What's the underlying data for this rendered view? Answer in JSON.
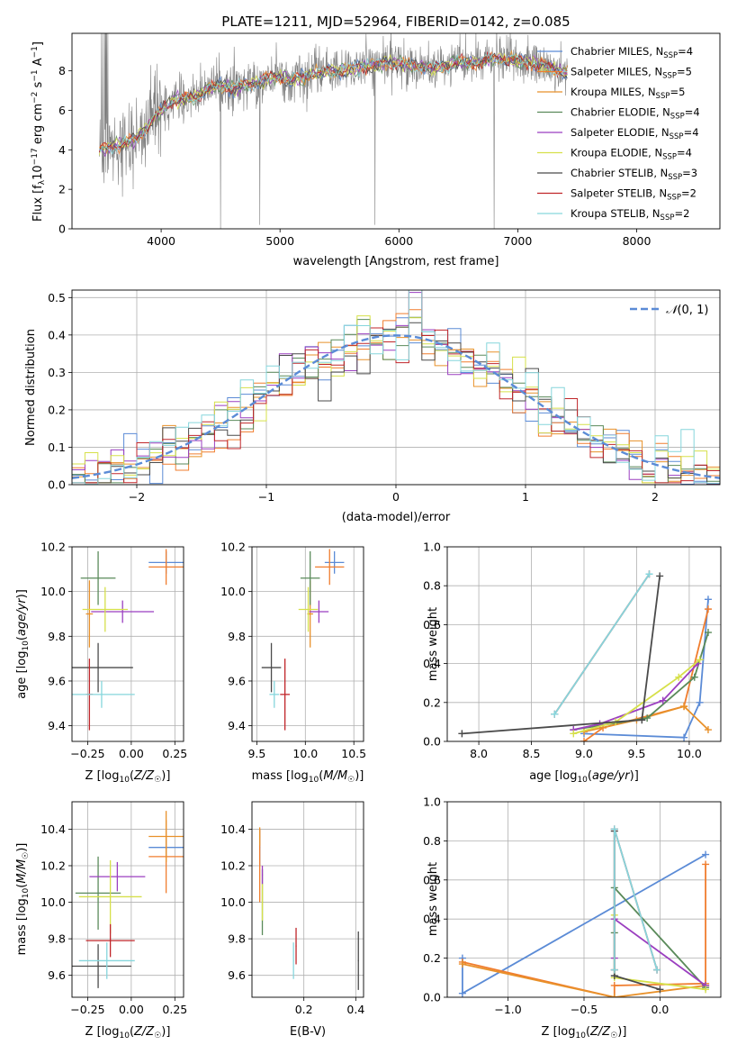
{
  "figure_title": "PLATE=1211, MJD=52964, FIBERID=0142, z=0.085",
  "colors": {
    "Chabrier MILES": "#5b8bd6",
    "Salpeter MILES": "#f07d2e",
    "Kroupa MILES": "#e8912a",
    "Chabrier ELODIE": "#5a8a5a",
    "Salpeter ELODIE": "#9b3fc0",
    "Kroupa ELODIE": "#d6e04a",
    "Chabrier STELIB": "#4a4a4a",
    "Salpeter STELIB": "#c0262a",
    "Kroupa STELIB": "#86d6dc",
    "data": "#808080",
    "grid": "#b0b0b0"
  },
  "chart_data": [
    {
      "type": "line",
      "xlabel": "wavelength [Angstrom, rest frame]",
      "ylabel": "Flux [fλ10⁻¹⁷ erg cm⁻² s⁻¹ A⁻¹]",
      "xlim": [
        3250,
        8700
      ],
      "ylim": [
        0,
        9.9
      ],
      "xticks": [
        4000,
        5000,
        6000,
        7000,
        8000
      ],
      "yticks": [
        0,
        2,
        4,
        6,
        8
      ],
      "grid": false,
      "legend_position": "top-right",
      "data_trace": {
        "x": [
          3480,
          3600,
          3700,
          3800,
          3900,
          4000,
          4100,
          4200,
          4300,
          4400,
          4500,
          4600,
          4700,
          4800,
          4900,
          5000,
          5100,
          5200,
          5300,
          5400,
          5500,
          5600,
          5700,
          5800,
          5900,
          6000,
          6100,
          6200,
          6300,
          6400,
          6500,
          6600,
          6700,
          6800,
          6900,
          7000,
          7100,
          7200,
          7300,
          7400
        ],
        "y": [
          4.0,
          4.2,
          4.3,
          4.6,
          5.3,
          6.0,
          6.5,
          6.6,
          6.7,
          7.1,
          7.3,
          7.1,
          7.3,
          7.4,
          7.6,
          7.7,
          7.5,
          7.7,
          7.9,
          8.0,
          8.0,
          8.1,
          8.2,
          8.3,
          8.4,
          8.4,
          8.3,
          8.2,
          8.1,
          8.3,
          8.4,
          8.4,
          8.5,
          8.6,
          8.6,
          8.5,
          8.4,
          8.3,
          8.1,
          7.9
        ]
      },
      "series": [
        {
          "name": "Chabrier MILES, N<sub>SSP</sub>=4",
          "name_main": "Chabrier MILES, N",
          "name_sub": "SSP",
          "name_end": "=4"
        },
        {
          "name": "Salpeter MILES, N<sub>SSP</sub>=5",
          "name_main": "Salpeter MILES, N",
          "name_sub": "SSP",
          "name_end": "=5"
        },
        {
          "name": "Kroupa MILES, N<sub>SSP</sub>=5",
          "name_main": "Kroupa MILES, N",
          "name_sub": "SSP",
          "name_end": "=5"
        },
        {
          "name": "Chabrier ELODIE, N<sub>SSP</sub>=4",
          "name_main": "Chabrier ELODIE, N",
          "name_sub": "SSP",
          "name_end": "=4"
        },
        {
          "name": "Salpeter ELODIE, N<sub>SSP</sub>=4",
          "name_main": "Salpeter ELODIE, N",
          "name_sub": "SSP",
          "name_end": "=4"
        },
        {
          "name": "Kroupa ELODIE, N<sub>SSP</sub>=4",
          "name_main": "Kroupa ELODIE, N",
          "name_sub": "SSP",
          "name_end": "=4"
        },
        {
          "name": "Chabrier STELIB, N<sub>SSP</sub>=3",
          "name_main": "Chabrier STELIB, N",
          "name_sub": "SSP",
          "name_end": "=3"
        },
        {
          "name": "Salpeter STELIB, N<sub>SSP</sub>=2",
          "name_main": "Salpeter STELIB, N",
          "name_sub": "SSP",
          "name_end": "=2"
        },
        {
          "name": "Kroupa STELIB, N<sub>SSP</sub>=2",
          "name_main": "Kroupa STELIB, N",
          "name_sub": "SSP",
          "name_end": "=2"
        }
      ]
    },
    {
      "type": "histogram",
      "xlabel": "(data-model)/error",
      "ylabel": "Normed distribution",
      "xlim": [
        -2.5,
        2.5
      ],
      "ylim": [
        0,
        0.52
      ],
      "xticks": [
        -2,
        -1,
        0,
        1,
        2
      ],
      "xtick_labels": [
        "−2",
        "−1",
        "0",
        "1",
        "2"
      ],
      "yticks": [
        0.0,
        0.1,
        0.2,
        0.3,
        0.4,
        0.5
      ],
      "ytick_labels": [
        "0.0",
        "0.1",
        "0.2",
        "0.3",
        "0.4",
        "0.5"
      ],
      "grid": true,
      "legend_position": "top-right",
      "reference_curve": {
        "name": "N(0,1)",
        "label_main": "𝒩",
        "label_args": "(0, 1)",
        "mean": 0,
        "sigma": 1
      },
      "bin_width": 0.1
    },
    {
      "type": "errorbar",
      "xlabel": "Z [log₁₀(Z/Z☉)]",
      "ylabel": "age  [log₁₀(age/yr)]",
      "xlim": [
        -0.34,
        0.3
      ],
      "ylim": [
        9.33,
        10.2
      ],
      "xticks": [
        -0.25,
        0.0,
        0.25
      ],
      "xtick_labels": [
        "−0.25",
        "0.00",
        "0.25"
      ],
      "yticks": [
        9.4,
        9.6,
        9.8,
        10.0,
        10.2
      ],
      "ytick_labels": [
        "9.4",
        "9.6",
        "9.8",
        "10.0",
        "10.2"
      ],
      "grid": true,
      "points": [
        {
          "series": "Chabrier MILES",
          "x": 0.2,
          "y": 10.13,
          "xerr": 0.1,
          "yerr": 0.05
        },
        {
          "series": "Salpeter MILES",
          "x": 0.2,
          "y": 10.11,
          "xerr": 0.1,
          "yerr": 0.08
        },
        {
          "series": "Kroupa MILES",
          "x": -0.24,
          "y": 9.9,
          "xerr": 0.02,
          "yerr": 0.15
        },
        {
          "series": "Chabrier ELODIE",
          "x": -0.19,
          "y": 10.06,
          "xerr": 0.1,
          "yerr": 0.12
        },
        {
          "series": "Salpeter ELODIE",
          "x": -0.05,
          "y": 9.91,
          "xerr": 0.18,
          "yerr": 0.05
        },
        {
          "series": "Kroupa ELODIE",
          "x": -0.15,
          "y": 9.92,
          "xerr": 0.13,
          "yerr": 0.1
        },
        {
          "series": "Chabrier STELIB",
          "x": -0.19,
          "y": 9.66,
          "xerr": 0.2,
          "yerr": 0.11
        },
        {
          "series": "Salpeter STELIB",
          "x": -0.24,
          "y": 9.54,
          "xerr": 0.02,
          "yerr": 0.16
        },
        {
          "series": "Kroupa STELIB",
          "x": -0.17,
          "y": 9.54,
          "xerr": 0.19,
          "yerr": 0.06
        }
      ]
    },
    {
      "type": "errorbar",
      "xlabel": "mass [log₁₀(M/M☉)]",
      "ylabel": "",
      "xlim": [
        9.45,
        10.6
      ],
      "ylim": [
        9.33,
        10.2
      ],
      "xticks": [
        9.5,
        10.0,
        10.5
      ],
      "xtick_labels": [
        "9.5",
        "10.0",
        "10.5"
      ],
      "yticks": [
        9.4,
        9.6,
        9.8,
        10.0,
        10.2
      ],
      "ytick_labels": [
        "9.4",
        "9.6",
        "9.8",
        "10.0",
        "10.2"
      ],
      "grid": true,
      "points": [
        {
          "series": "Chabrier MILES",
          "x": 10.3,
          "y": 10.13,
          "xerr": 0.1,
          "yerr": 0.05
        },
        {
          "series": "Salpeter MILES",
          "x": 10.25,
          "y": 10.11,
          "xerr": 0.15,
          "yerr": 0.08
        },
        {
          "series": "Kroupa MILES",
          "x": 10.05,
          "y": 9.9,
          "xerr": 0.03,
          "yerr": 0.15
        },
        {
          "series": "Chabrier ELODIE",
          "x": 10.05,
          "y": 10.06,
          "xerr": 0.1,
          "yerr": 0.12
        },
        {
          "series": "Salpeter ELODIE",
          "x": 10.14,
          "y": 9.91,
          "xerr": 0.1,
          "yerr": 0.05
        },
        {
          "series": "Kroupa ELODIE",
          "x": 10.03,
          "y": 9.92,
          "xerr": 0.1,
          "yerr": 0.1
        },
        {
          "series": "Chabrier STELIB",
          "x": 9.65,
          "y": 9.66,
          "xerr": 0.1,
          "yerr": 0.11
        },
        {
          "series": "Salpeter STELIB",
          "x": 9.79,
          "y": 9.54,
          "xerr": 0.05,
          "yerr": 0.16
        },
        {
          "series": "Kroupa STELIB",
          "x": 9.68,
          "y": 9.54,
          "xerr": 0.05,
          "yerr": 0.06
        }
      ]
    },
    {
      "type": "line",
      "xlabel": "age  [log₁₀(age/yr)]",
      "ylabel": "mass weight",
      "xlim": [
        7.7,
        10.3
      ],
      "ylim": [
        0,
        1
      ],
      "xticks": [
        8.0,
        8.5,
        9.0,
        9.5,
        10.0
      ],
      "xtick_labels": [
        "8.0",
        "8.5",
        "9.0",
        "9.5",
        "10.0"
      ],
      "yticks": [
        0,
        0.2,
        0.4,
        0.6,
        0.8,
        1.0
      ],
      "ytick_labels": [
        "0.0",
        "0.2",
        "0.4",
        "0.6",
        "0.8",
        "1.0"
      ],
      "grid": true,
      "series": [
        {
          "series": "Chabrier MILES",
          "x": [
            9.0,
            9.95,
            10.1,
            10.18
          ],
          "y": [
            0.04,
            0.02,
            0.2,
            0.73
          ]
        },
        {
          "series": "Salpeter MILES",
          "x": [
            9.0,
            9.18,
            9.95,
            10.18
          ],
          "y": [
            0.0,
            0.07,
            0.18,
            0.68
          ]
        },
        {
          "series": "Kroupa MILES",
          "x": [
            9.0,
            9.5,
            9.95,
            10.18
          ],
          "y": [
            0.05,
            0.11,
            0.18,
            0.06
          ]
        },
        {
          "series": "Chabrier ELODIE",
          "x": [
            8.9,
            9.6,
            10.05,
            10.18
          ],
          "y": [
            0.06,
            0.12,
            0.33,
            0.56
          ]
        },
        {
          "series": "Salpeter ELODIE",
          "x": [
            8.9,
            9.15,
            9.75,
            10.08
          ],
          "y": [
            0.06,
            0.09,
            0.21,
            0.4
          ]
        },
        {
          "series": "Kroupa ELODIE",
          "x": [
            8.9,
            9.3,
            9.9,
            10.1
          ],
          "y": [
            0.04,
            0.1,
            0.33,
            0.42
          ]
        },
        {
          "series": "Chabrier STELIB",
          "x": [
            7.84,
            9.55,
            9.72
          ],
          "y": [
            0.04,
            0.11,
            0.85
          ]
        },
        {
          "series": "Salpeter STELIB",
          "x": [
            8.72,
            9.62
          ],
          "y": [
            0.14,
            0.86
          ]
        },
        {
          "series": "Kroupa STELIB",
          "x": [
            8.72,
            9.62
          ],
          "y": [
            0.14,
            0.86
          ]
        }
      ]
    },
    {
      "type": "errorbar",
      "xlabel": "Z [log₁₀(Z/Z☉)]",
      "ylabel": "mass [log₁₀(M/M☉)]",
      "xlim": [
        -0.34,
        0.3
      ],
      "ylim": [
        9.48,
        10.55
      ],
      "xticks": [
        -0.25,
        0.0,
        0.25
      ],
      "xtick_labels": [
        "−0.25",
        "0.00",
        "0.25"
      ],
      "yticks": [
        9.6,
        9.8,
        10.0,
        10.2,
        10.4
      ],
      "ytick_labels": [
        "9.6",
        "9.8",
        "10.0",
        "10.2",
        "10.4"
      ],
      "grid": true,
      "points": [
        {
          "series": "Chabrier MILES",
          "x": 0.2,
          "y": 10.3,
          "xerr": 0.1,
          "yerr": 0.05
        },
        {
          "series": "Salpeter MILES",
          "x": 0.2,
          "y": 10.25,
          "xerr": 0.1,
          "yerr": 0.2
        },
        {
          "series": "Kroupa MILES",
          "x": 0.2,
          "y": 10.36,
          "xerr": 0.1,
          "yerr": 0.14
        },
        {
          "series": "Chabrier ELODIE",
          "x": -0.19,
          "y": 10.05,
          "xerr": 0.13,
          "yerr": 0.2
        },
        {
          "series": "Salpeter ELODIE",
          "x": -0.08,
          "y": 10.14,
          "xerr": 0.16,
          "yerr": 0.08
        },
        {
          "series": "Kroupa ELODIE",
          "x": -0.12,
          "y": 10.03,
          "xerr": 0.18,
          "yerr": 0.2
        },
        {
          "series": "Chabrier STELIB",
          "x": -0.19,
          "y": 9.65,
          "xerr": 0.19,
          "yerr": 0.12
        },
        {
          "series": "Salpeter STELIB",
          "x": -0.12,
          "y": 9.79,
          "xerr": 0.14,
          "yerr": 0.09
        },
        {
          "series": "Kroupa STELIB",
          "x": -0.14,
          "y": 9.68,
          "xerr": 0.16,
          "yerr": 0.1
        }
      ]
    },
    {
      "type": "errorbar",
      "xlabel": "E(B-V)",
      "ylabel": "",
      "xlim": [
        0.0,
        0.43
      ],
      "ylim": [
        9.48,
        10.55
      ],
      "xticks": [
        0.2,
        0.4
      ],
      "xtick_labels": [
        "0.2",
        "0.4"
      ],
      "yticks": [
        9.6,
        9.8,
        10.0,
        10.2,
        10.4
      ],
      "ytick_labels": [
        "9.6",
        "9.8",
        "10.0",
        "10.2",
        "10.4"
      ],
      "grid": true,
      "points": [
        {
          "series": "Chabrier MILES",
          "x": 0.03,
          "y": 10.3,
          "xerr": 0.002,
          "yerr": 0.1
        },
        {
          "series": "Salpeter MILES",
          "x": 0.03,
          "y": 10.2,
          "xerr": 0.002,
          "yerr": 0.2
        },
        {
          "series": "Kroupa MILES",
          "x": 0.03,
          "y": 10.36,
          "xerr": 0.002,
          "yerr": 0.05
        },
        {
          "series": "Chabrier ELODIE",
          "x": 0.04,
          "y": 10.0,
          "xerr": 0.002,
          "yerr": 0.18
        },
        {
          "series": "Salpeter ELODIE",
          "x": 0.04,
          "y": 10.15,
          "xerr": 0.002,
          "yerr": 0.05
        },
        {
          "series": "Kroupa ELODIE",
          "x": 0.04,
          "y": 10.0,
          "xerr": 0.002,
          "yerr": 0.1
        },
        {
          "series": "Chabrier STELIB",
          "x": 0.41,
          "y": 9.68,
          "xerr": 0.002,
          "yerr": 0.16
        },
        {
          "series": "Salpeter STELIB",
          "x": 0.17,
          "y": 9.76,
          "xerr": 0.002,
          "yerr": 0.1
        },
        {
          "series": "Kroupa STELIB",
          "x": 0.16,
          "y": 9.68,
          "xerr": 0.002,
          "yerr": 0.1
        }
      ]
    },
    {
      "type": "line",
      "xlabel": "Z [log₁₀(Z/Z☉)]",
      "ylabel": "mass weight",
      "xlim": [
        -1.4,
        0.4
      ],
      "ylim": [
        0,
        1
      ],
      "xticks": [
        -1.0,
        -0.5,
        0.0
      ],
      "xtick_labels": [
        "−1.0",
        "−0.5",
        "0.0"
      ],
      "yticks": [
        0,
        0.2,
        0.4,
        0.6,
        0.8,
        1.0
      ],
      "ytick_labels": [
        "0.0",
        "0.2",
        "0.4",
        "0.6",
        "0.8",
        "1.0"
      ],
      "grid": true,
      "series": [
        {
          "series": "Chabrier MILES",
          "x": [
            -1.3,
            -1.3,
            0.3
          ],
          "y": [
            0.2,
            0.02,
            0.73
          ]
        },
        {
          "series": "Salpeter MILES",
          "x": [
            -1.3,
            -0.3,
            -0.3,
            0.3,
            0.3
          ],
          "y": [
            0.18,
            0.0,
            0.06,
            0.07,
            0.68
          ]
        },
        {
          "series": "Kroupa MILES",
          "x": [
            -1.3,
            -0.3,
            0.3
          ],
          "y": [
            0.17,
            0.0,
            0.06
          ]
        },
        {
          "series": "Chabrier ELODIE",
          "x": [
            -0.3,
            -0.3,
            0.3
          ],
          "y": [
            0.33,
            0.56,
            0.05
          ]
        },
        {
          "series": "Salpeter ELODIE",
          "x": [
            -0.3,
            -0.3,
            0.3
          ],
          "y": [
            0.2,
            0.4,
            0.06
          ]
        },
        {
          "series": "Kroupa ELODIE",
          "x": [
            -0.3,
            -0.3,
            0.3
          ],
          "y": [
            0.42,
            0.1,
            0.04
          ]
        },
        {
          "series": "Chabrier STELIB",
          "x": [
            -0.3,
            -0.3,
            0.0
          ],
          "y": [
            0.85,
            0.11,
            0.04
          ]
        },
        {
          "series": "Salpeter STELIB",
          "x": [
            -0.3,
            -0.3,
            -0.02
          ],
          "y": [
            0.14,
            0.86,
            0.14
          ]
        },
        {
          "series": "Kroupa STELIB",
          "x": [
            -0.3,
            -0.3,
            -0.02
          ],
          "y": [
            0.14,
            0.86,
            0.14
          ]
        }
      ]
    }
  ]
}
